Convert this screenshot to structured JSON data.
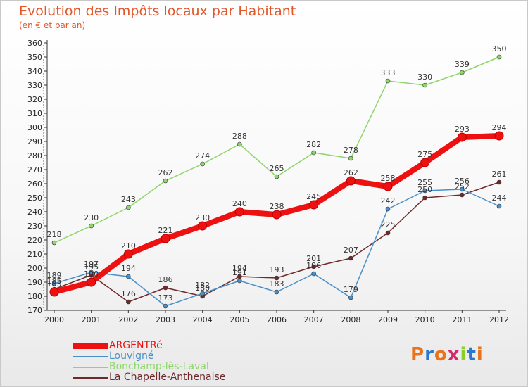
{
  "chart_data": {
    "type": "line",
    "title": "Evolution des Impôts locaux par Habitant",
    "subtitle": "(en € et par an)",
    "xlabel": "",
    "ylabel": "",
    "x": [
      "2000",
      "2001",
      "2002",
      "2003",
      "2004",
      "2005",
      "2006",
      "2007",
      "2008",
      "2009",
      "2010",
      "2011",
      "2012"
    ],
    "ylim": [
      170,
      360
    ],
    "yticks": [
      170,
      180,
      190,
      200,
      210,
      220,
      230,
      240,
      250,
      260,
      270,
      280,
      290,
      300,
      310,
      320,
      330,
      340,
      350,
      360
    ],
    "grid": false,
    "legend_position": "bottom-left",
    "series": [
      {
        "name": "ARGENTRé",
        "color": "#ee1111",
        "values": [
          183,
          190,
          210,
          221,
          230,
          240,
          238,
          245,
          262,
          258,
          275,
          293,
          294
        ]
      },
      {
        "name": "Louvigné",
        "color": "#4a90c8",
        "values": [
          189,
          197,
          194,
          173,
          182,
          191,
          183,
          196,
          179,
          242,
          255,
          256,
          244
        ]
      },
      {
        "name": "Bonchamp-lès-Laval",
        "color": "#8ed66b",
        "values": [
          218,
          230,
          243,
          262,
          274,
          288,
          265,
          282,
          278,
          333,
          330,
          339,
          350
        ]
      },
      {
        "name": "La Chapelle-Anthenaise",
        "color": "#6e2a2a",
        "values": [
          185,
          195,
          176,
          186,
          180,
          194,
          193,
          201,
          207,
          225,
          250,
          252,
          261
        ]
      }
    ]
  },
  "branding": {
    "logo_text": "Proxiti",
    "logo_colors": [
      "#e8731c",
      "#2d77c8",
      "#e8731c",
      "#d62a6d",
      "#8ccd2a",
      "#2d77c8",
      "#e8731c"
    ]
  }
}
